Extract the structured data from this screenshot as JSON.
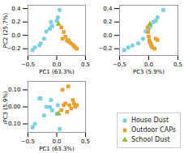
{
  "chart_data": [
    {
      "type": "scatter",
      "xlabel": "PC1 (63.3%)",
      "ylabel": "PC2 (25.7%)",
      "xlim": [
        -0.5,
        0.5
      ],
      "ylim": [
        -0.3,
        0.45
      ],
      "xticks": [
        -0.5,
        0,
        0.5
      ],
      "yticks": [
        -0.2,
        0,
        0.2,
        0.4
      ],
      "grid": false,
      "series": [
        {
          "name": "House Dust",
          "color": "#7ecfe0",
          "marker": "circle",
          "x": [
            -0.42,
            -0.38,
            -0.3,
            -0.28,
            -0.22,
            -0.18,
            -0.12,
            -0.08,
            -0.1,
            0.0,
            0.02,
            0.05
          ],
          "values": [
            -0.22,
            -0.18,
            -0.15,
            -0.12,
            -0.05,
            0.06,
            0.1,
            0.14,
            0.2,
            0.22,
            0.27,
            0.38
          ]
        },
        {
          "name": "Outdoor CAPs",
          "color": "#e8a030",
          "marker": "square",
          "x": [
            0.08,
            0.12,
            0.15,
            0.18,
            0.22,
            0.25,
            0.28,
            0.3,
            0.32,
            0.35,
            0.1,
            0.2
          ],
          "values": [
            0.12,
            0.05,
            -0.02,
            -0.08,
            -0.1,
            -0.12,
            -0.14,
            -0.16,
            -0.18,
            -0.2,
            -0.05,
            -0.07
          ]
        },
        {
          "name": "School Dust",
          "color": "#96b83a",
          "marker": "triangle",
          "x": [
            0.03
          ],
          "values": [
            0.17
          ]
        }
      ]
    },
    {
      "type": "scatter",
      "xlabel": "PC3 (5.9%)",
      "xlim": [
        -0.5,
        0.5
      ],
      "ylim": [
        -0.3,
        0.45
      ],
      "xticks": [
        -0.5,
        0,
        0.5
      ],
      "yticks": [
        -0.2,
        0,
        0.2,
        0.4
      ],
      "grid": false,
      "series": [
        {
          "name": "House Dust",
          "color": "#7ecfe0",
          "marker": "circle",
          "x": [
            -0.42,
            -0.35,
            -0.28,
            -0.18,
            -0.1,
            -0.05,
            0.0,
            0.03,
            0.08,
            0.12,
            0.15,
            0.25
          ],
          "values": [
            -0.22,
            -0.18,
            -0.15,
            -0.12,
            -0.05,
            0.06,
            0.1,
            0.14,
            0.2,
            0.22,
            0.27,
            0.38
          ]
        },
        {
          "name": "Outdoor CAPs",
          "color": "#e8a030",
          "marker": "square",
          "x": [
            -0.02,
            -0.01,
            0.0,
            0.01,
            0.02,
            0.03,
            0.04,
            0.05,
            0.06,
            0.1,
            0.12,
            0.15
          ],
          "values": [
            0.12,
            0.05,
            -0.02,
            -0.08,
            -0.1,
            -0.12,
            -0.14,
            -0.16,
            -0.18,
            -0.2,
            -0.05,
            -0.07
          ]
        },
        {
          "name": "School Dust",
          "color": "#96b83a",
          "marker": "triangle",
          "x": [
            0.02
          ],
          "values": [
            0.17
          ]
        }
      ]
    },
    {
      "type": "scatter",
      "xlabel": "PC1 (63.3%)",
      "ylabel": "PC3 (5.9%)",
      "xlim": [
        -0.5,
        0.5
      ],
      "ylim": [
        -0.15,
        0.15
      ],
      "xticks": [
        -0.5,
        0,
        0.5
      ],
      "yticks": [
        -0.1,
        0,
        0.1
      ],
      "grid": false,
      "legend": "lower right",
      "series": [
        {
          "name": "House Dust",
          "color": "#7ecfe0",
          "marker": "circle",
          "x": [
            -0.42,
            -0.38,
            -0.3,
            -0.28,
            -0.22,
            -0.18,
            -0.12,
            -0.08,
            -0.1,
            0.0,
            0.02,
            0.05
          ],
          "values": [
            -0.12,
            -0.1,
            0.05,
            0.05,
            -0.05,
            0.0,
            0.0,
            -0.02,
            0.04,
            -0.04,
            0.01,
            -0.13
          ]
        },
        {
          "name": "Outdoor CAPs",
          "color": "#e8a030",
          "marker": "square",
          "x": [
            0.08,
            0.12,
            0.15,
            0.18,
            0.22,
            0.25,
            0.28,
            0.3,
            0.32,
            0.35,
            0.1,
            0.2
          ],
          "values": [
            -0.02,
            0.01,
            0.02,
            -0.03,
            0.01,
            -0.01,
            0.04,
            0.02,
            0.0,
            0.01,
            0.1,
            0.12
          ]
        },
        {
          "name": "School Dust",
          "color": "#96b83a",
          "marker": "triangle",
          "x": [
            0.03
          ],
          "values": [
            -0.04
          ]
        }
      ]
    }
  ]
}
